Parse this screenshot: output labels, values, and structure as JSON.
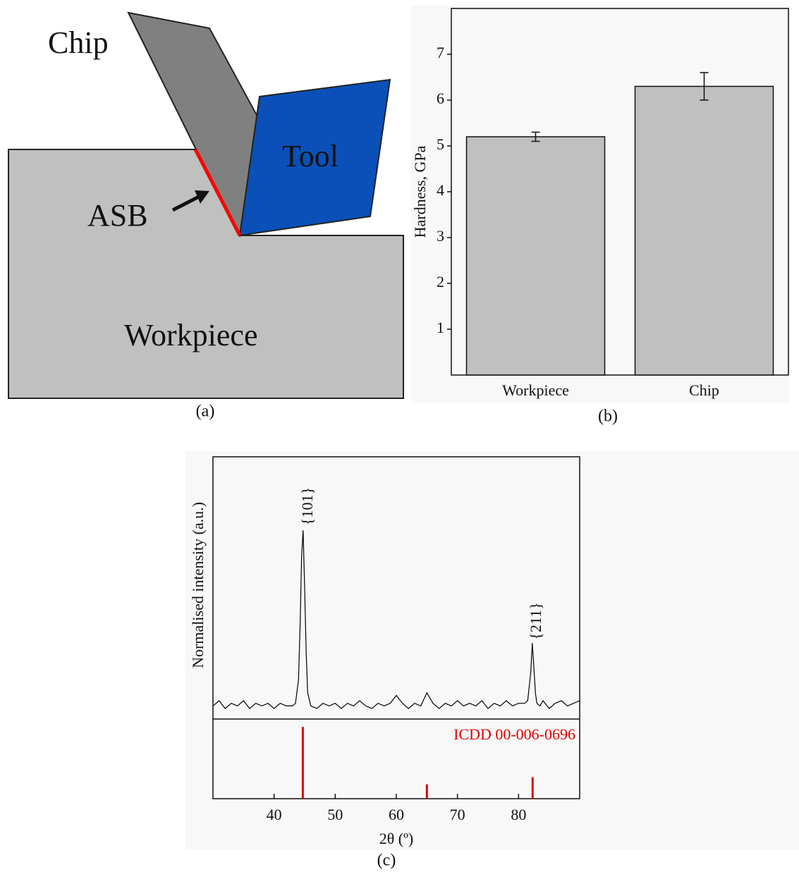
{
  "diagram": {
    "labels": {
      "chip": "Chip",
      "tool": "Tool",
      "asb": "ASB",
      "workpiece": "Workpiece"
    },
    "caption": "(a)"
  },
  "chart_data": [
    {
      "type": "bar",
      "caption": "(b)",
      "ylabel": "Hardness, GPa",
      "categories": [
        "Workpiece",
        "Chip"
      ],
      "values": [
        5.2,
        6.3
      ],
      "errors": [
        0.1,
        0.3
      ],
      "color": "#c0c0c0",
      "ylim": [
        0,
        8
      ],
      "yticks": [
        1,
        2,
        3,
        4,
        5,
        6,
        7
      ]
    },
    {
      "type": "line",
      "caption": "(c)",
      "xlabel": "2θ (º)",
      "ylabel": "Normalised intensity (a.u.)",
      "color": "#000000",
      "xlim": [
        30,
        90
      ],
      "xticks": [
        40,
        50,
        60,
        70,
        80
      ],
      "ylim": [
        0,
        1
      ],
      "x": [
        30,
        31,
        32,
        33,
        34,
        35,
        36,
        37,
        38,
        39,
        40,
        41,
        42,
        43,
        43.5,
        44,
        44.25,
        44.5,
        44.75,
        45,
        45.25,
        45.5,
        46,
        47,
        48,
        49,
        50,
        51,
        52,
        53,
        54,
        55,
        56,
        57,
        58,
        59,
        60,
        61,
        62,
        63,
        64,
        65,
        66,
        67,
        68,
        69,
        70,
        71,
        72,
        73,
        74,
        75,
        76,
        77,
        78,
        79,
        80,
        81,
        81.5,
        82,
        82.25,
        82.5,
        82.75,
        83,
        83.5,
        84,
        85,
        86,
        87,
        88,
        89,
        90
      ],
      "values": [
        0.05,
        0.07,
        0.04,
        0.06,
        0.05,
        0.07,
        0.04,
        0.06,
        0.05,
        0.06,
        0.04,
        0.06,
        0.05,
        0.05,
        0.06,
        0.15,
        0.35,
        0.62,
        0.72,
        0.5,
        0.25,
        0.1,
        0.05,
        0.04,
        0.06,
        0.05,
        0.06,
        0.04,
        0.06,
        0.05,
        0.07,
        0.05,
        0.04,
        0.06,
        0.05,
        0.06,
        0.09,
        0.06,
        0.04,
        0.06,
        0.05,
        0.1,
        0.06,
        0.04,
        0.06,
        0.05,
        0.07,
        0.05,
        0.06,
        0.05,
        0.07,
        0.04,
        0.06,
        0.05,
        0.07,
        0.05,
        0.06,
        0.06,
        0.07,
        0.18,
        0.29,
        0.2,
        0.1,
        0.06,
        0.05,
        0.07,
        0.04,
        0.06,
        0.07,
        0.05,
        0.06,
        0.07
      ],
      "annotations": [
        "{101}",
        "{211}"
      ],
      "reference": {
        "name": "ICDD 00-006-0696",
        "color": "#e00000",
        "x": [
          44.7,
          65.0,
          82.3
        ],
        "values": [
          0.9,
          0.18,
          0.27
        ],
        "ylim": [
          0,
          1
        ]
      }
    }
  ]
}
